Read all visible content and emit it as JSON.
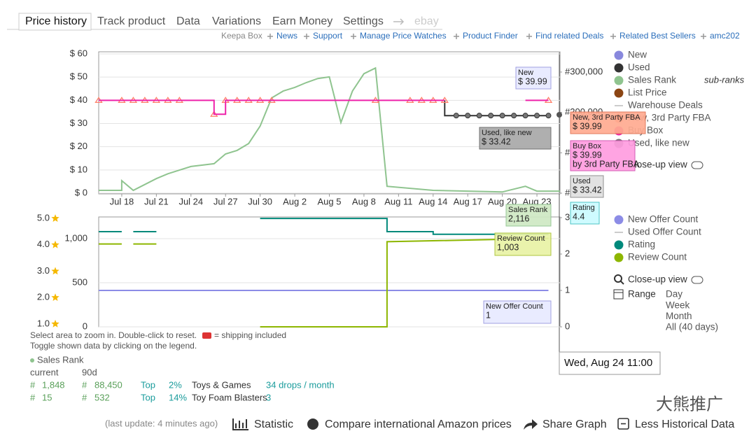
{
  "tabs": [
    "Price history",
    "Track product",
    "Data",
    "Variations",
    "Earn Money",
    "Settings",
    "ebay"
  ],
  "links": [
    "Keepa Box",
    "News",
    "Support",
    "Manage Price Watches",
    "Product Finder",
    "Find related Deals",
    "Related Best Sellers",
    "amc202"
  ],
  "price_chart": {
    "type": "line",
    "xlim": [
      "Jul 16",
      "Aug 25"
    ],
    "xticks": [
      "Jul 18",
      "Jul 21",
      "Jul 24",
      "Jul 27",
      "Jul 30",
      "Aug 2",
      "Aug 5",
      "Aug 8",
      "Aug 11",
      "Aug 14",
      "Aug 17",
      "Aug 20",
      "Aug 23"
    ],
    "ylim": [
      0,
      60
    ],
    "yticks": [
      {
        "value": 0,
        "label": "$ 0"
      },
      {
        "value": 10,
        "label": "$ 10"
      },
      {
        "value": 20,
        "label": "$ 20"
      },
      {
        "value": 30,
        "label": "$ 30"
      },
      {
        "value": 40,
        "label": "$ 40"
      },
      {
        "value": 50,
        "label": "$ 50"
      },
      {
        "value": 60,
        "label": "$ 60"
      }
    ],
    "y2lim": [
      0,
      345000
    ],
    "y2ticks": [
      {
        "value": 0,
        "label": "#"
      },
      {
        "value": 100000,
        "label": "#"
      },
      {
        "value": 200000,
        "label": "#200,000"
      },
      {
        "value": 300000,
        "label": "#300,000"
      }
    ],
    "grid": true,
    "legend": [
      {
        "name": "New",
        "color": "#8888dd",
        "marker": "dot"
      },
      {
        "name": "Used",
        "color": "#333333",
        "marker": "dot",
        "x": [
          "Aug 15",
          "Aug 15",
          "Aug 24"
        ],
        "values": [
          39.99,
          33.42,
          33.42
        ]
      },
      {
        "name": "Sales Rank",
        "color": "#8fc48f",
        "marker": "dot",
        "axis": "y2",
        "x": [
          "Jul 16",
          "Jul 18",
          "Jul 18",
          "Jul 19",
          "Jul 21",
          "Jul 22",
          "Jul 23",
          "Jul 24",
          "Jul 26",
          "Jul 27",
          "Jul 28",
          "Jul 29",
          "Jul 30",
          "Jul 31",
          "Aug 1",
          "Aug 2",
          "Aug 3",
          "Aug 4",
          "Aug 5",
          "Aug 6",
          "Aug 7",
          "Aug 8",
          "Aug 9",
          "Aug 10",
          "Aug 14",
          "Aug 20",
          "Aug 22",
          "Aug 23",
          "Aug 25"
        ],
        "values": [
          7000,
          7000,
          31000,
          7000,
          36000,
          48000,
          57000,
          66000,
          73000,
          97000,
          106000,
          123000,
          166000,
          236000,
          253000,
          262000,
          274000,
          284000,
          288000,
          175000,
          253000,
          296000,
          310000,
          17000,
          7000,
          3000,
          17000,
          5000,
          5000
        ]
      },
      {
        "name": "List Price",
        "color": "#8b4513",
        "marker": "dot"
      },
      {
        "name": "Warehouse Deals",
        "color": "#bbbbbb",
        "marker": "line"
      },
      {
        "name": "New, 3rd Party FBA",
        "color": "#ff7f6a",
        "marker": "triangle",
        "x": [
          "Jul 16",
          "Jul 18",
          "Jul 19",
          "Jul 20",
          "Jul 21",
          "Jul 22",
          "Jul 23",
          "Jul 26",
          "Jul 27",
          "Jul 28",
          "Jul 29",
          "Jul 30",
          "Jul 31",
          "Aug 9",
          "Aug 12",
          "Aug 13",
          "Aug 14",
          "Aug 15",
          "Aug 24"
        ],
        "values": [
          39.99,
          39.99,
          39.99,
          39.99,
          39.99,
          39.99,
          39.99,
          33.99,
          39.99,
          39.99,
          39.99,
          39.99,
          39.99,
          39.99,
          39.99,
          39.99,
          39.99,
          39.99,
          39.99
        ]
      },
      {
        "name": "Buy Box",
        "color": "#ee22aa",
        "marker": "dot",
        "x": [
          "Jul 16",
          "Jul 26",
          "Jul 26",
          "Jul 27",
          "Jul 27",
          "Aug 15",
          null,
          "Aug 22",
          "Aug 24"
        ],
        "values": [
          39.99,
          39.99,
          33.99,
          33.99,
          39.99,
          39.99,
          null,
          39.99,
          39.99
        ]
      },
      {
        "name": "Used, like new",
        "color": "#777777",
        "marker": "circle",
        "x": [
          "Aug 16",
          "Aug 17",
          "Aug 18",
          "Aug 19",
          "Aug 20",
          "Aug 21",
          "Aug 22",
          "Aug 23",
          "Aug 24"
        ],
        "values": [
          33.42,
          33.42,
          33.42,
          33.42,
          33.42,
          33.42,
          33.42,
          33.42,
          33.42
        ]
      }
    ],
    "sub_ranks": "sub-ranks",
    "close_up": "Close-up view"
  },
  "count_chart": {
    "type": "line",
    "xlim": [
      "Jul 16",
      "Aug 25"
    ],
    "ylim": [
      0,
      1238
    ],
    "yticks": [
      0,
      500,
      {
        "value": 1000,
        "label": "1,000"
      }
    ],
    "y2lim": [
      0,
      3
    ],
    "y2ticks": [
      0,
      1,
      2,
      3
    ],
    "y3lim": [
      0.89,
      5.03
    ],
    "y3ticks": [
      {
        "value": 1,
        "label": "1.0"
      },
      {
        "value": 2,
        "label": "2.0"
      },
      {
        "value": 3,
        "label": "3.0"
      },
      {
        "value": 4,
        "label": "4.0"
      },
      {
        "value": 5,
        "label": "5.0"
      }
    ],
    "grid": true,
    "legend": [
      {
        "name": "New Offer Count",
        "color": "#8c8ce6",
        "marker": "dot",
        "axis": "y2",
        "x": [
          "Jul 16",
          "Aug 24"
        ],
        "values": [
          1,
          1
        ]
      },
      {
        "name": "Used Offer Count",
        "color": "#bbbbbb",
        "marker": "line"
      },
      {
        "name": "Rating",
        "color": "#00897b",
        "marker": "dot",
        "axis": "y3",
        "x": [
          "Jul 16",
          "Jul 18",
          null,
          "Jul 19",
          "Jul 21",
          null,
          "Jul 30",
          "Aug 10",
          "Aug 10",
          "Aug 14",
          "Aug 14",
          "Aug 24"
        ],
        "values": [
          4.5,
          4.5,
          null,
          4.5,
          4.5,
          null,
          5,
          5,
          4.5,
          4.5,
          4.4,
          4.4
        ]
      },
      {
        "name": "Review Count",
        "color": "#8db600",
        "marker": "dot",
        "x": [
          "Jul 16",
          "Jul 18",
          null,
          "Jul 19",
          "Jul 21",
          null,
          "Jul 30",
          "Aug 10",
          "Aug 10",
          "Aug 24"
        ],
        "values": [
          940,
          940,
          null,
          940,
          940,
          null,
          0,
          0,
          965,
          1003
        ]
      }
    ],
    "close_up": "Close-up view",
    "range_label": "Range",
    "range_options": [
      "Day",
      "Week",
      "Month",
      "All (40 days)"
    ]
  },
  "tooltips": [
    [
      "New",
      "$ 39.99"
    ],
    [
      "Used, like new",
      "$ 33.42"
    ],
    [
      "New, 3rd Party FBA",
      "$ 39.99"
    ],
    [
      "Buy Box",
      "$ 39.99",
      "by 3rd Party FBA"
    ],
    [
      "Used",
      "$ 33.42"
    ],
    [
      "Sales Rank",
      "2,116"
    ],
    [
      "Rating",
      "4.4"
    ],
    [
      "Review Count",
      "1,003"
    ],
    [
      "New Offer Count",
      "1"
    ]
  ],
  "hover_date": "Wed, Aug 24 11:00",
  "hints": [
    "Select area to zoom in. Double-click to reset.",
    "= shipping included",
    "Toggle shown data by clicking on the legend."
  ],
  "sales_rank": {
    "title": "Sales Rank",
    "headers": [
      "current",
      "90d"
    ],
    "rows": [
      [
        "#",
        "1,848",
        "#",
        "88,450",
        "Top",
        "2%",
        "Toys & Games",
        "34 drops / month"
      ],
      [
        "#",
        "15",
        "#",
        "532",
        "Top",
        "14%",
        "Toy Foam Blasters",
        "3"
      ]
    ]
  },
  "footer": [
    "(last update: 4 minutes ago)",
    "Statistic",
    "Compare international Amazon prices",
    "Share Graph",
    "Less Historical Data"
  ],
  "watermark": "大熊推广"
}
